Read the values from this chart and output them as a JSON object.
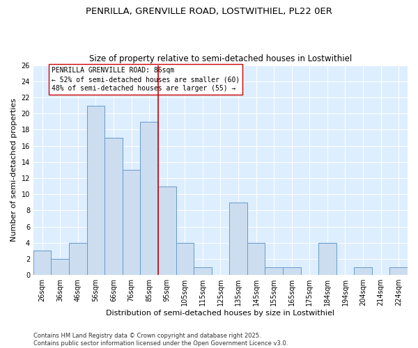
{
  "title_line1": "PENRILLA, GRENVILLE ROAD, LOSTWITHIEL, PL22 0ER",
  "title_line2": "Size of property relative to semi-detached houses in Lostwithiel",
  "xlabel": "Distribution of semi-detached houses by size in Lostwithiel",
  "ylabel": "Number of semi-detached properties",
  "bins": [
    "26sqm",
    "36sqm",
    "46sqm",
    "56sqm",
    "66sqm",
    "76sqm",
    "85sqm",
    "95sqm",
    "105sqm",
    "115sqm",
    "125sqm",
    "135sqm",
    "145sqm",
    "155sqm",
    "165sqm",
    "175sqm",
    "184sqm",
    "194sqm",
    "204sqm",
    "214sqm",
    "224sqm"
  ],
  "values": [
    3,
    2,
    4,
    21,
    17,
    13,
    19,
    11,
    4,
    1,
    0,
    9,
    4,
    1,
    1,
    0,
    4,
    0,
    1,
    0,
    1
  ],
  "bar_color": "#ccddf0",
  "bar_edge_color": "#6699cc",
  "red_line_x": 6.5,
  "annotation_line1": "PENRILLA GRENVILLE ROAD: 86sqm",
  "annotation_line2": "← 52% of semi-detached houses are smaller (60)",
  "annotation_line3": "48% of semi-detached houses are larger (55) →",
  "red_line_color": "#cc0000",
  "ylim": [
    0,
    26
  ],
  "yticks": [
    0,
    2,
    4,
    6,
    8,
    10,
    12,
    14,
    16,
    18,
    20,
    22,
    24,
    26
  ],
  "background_color": "#ddeeff",
  "plot_bg_color": "#ddeeff",
  "footer_text": "Contains HM Land Registry data © Crown copyright and database right 2025.\nContains public sector information licensed under the Open Government Licence v3.0.",
  "title_fontsize": 9.5,
  "subtitle_fontsize": 8.5,
  "axis_label_fontsize": 8,
  "tick_fontsize": 7,
  "annotation_fontsize": 7,
  "footer_fontsize": 6
}
